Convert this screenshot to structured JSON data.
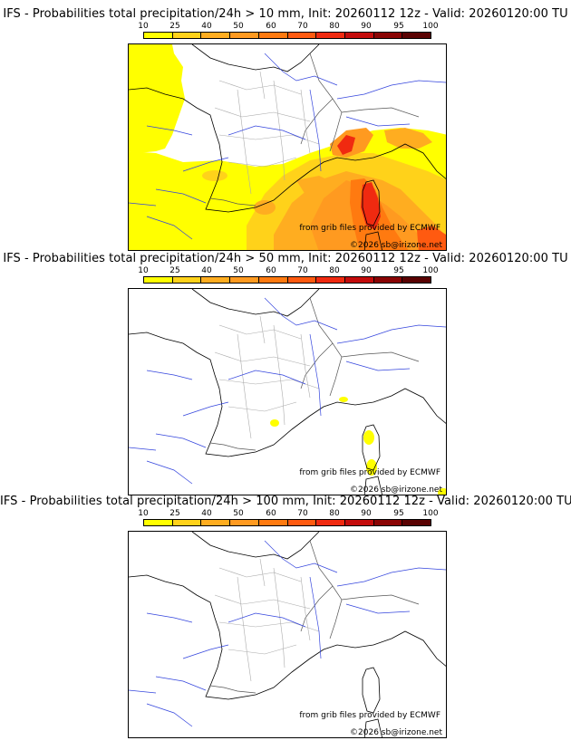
{
  "scale": {
    "labels": [
      "10",
      "25",
      "40",
      "50",
      "60",
      "70",
      "80",
      "90",
      "95",
      "100"
    ],
    "colors": [
      "#ffff00",
      "#ffd21a",
      "#ffad20",
      "#ff9a20",
      "#ff7a10",
      "#ff5a10",
      "#f02a10",
      "#c40c0c",
      "#8a0404",
      "#5a0202"
    ]
  },
  "panels": [
    {
      "title": "IFS - Probabilities total precipitation/24h > 10 mm, Init: 20260112 12z - Valid: 20260120:00 TU",
      "credit_source": "from grib files provided by ECMWF",
      "credit_copyright": "©2026 sb@irizone.net"
    },
    {
      "title": "IFS - Probabilities total precipitation/24h > 50 mm, Init: 20260112 12z - Valid: 20260120:00 TU",
      "credit_source": "from grib files provided by ECMWF",
      "credit_copyright": "©2026 sb@irizone.net"
    },
    {
      "title": "IFS - Probabilities total precipitation/24h > 100 mm, Init: 20260112 12z - Valid: 20260120:00 TU",
      "credit_source": "from grib files provided by ECMWF",
      "credit_copyright": "©2026 sb@irizone.net"
    }
  ]
}
